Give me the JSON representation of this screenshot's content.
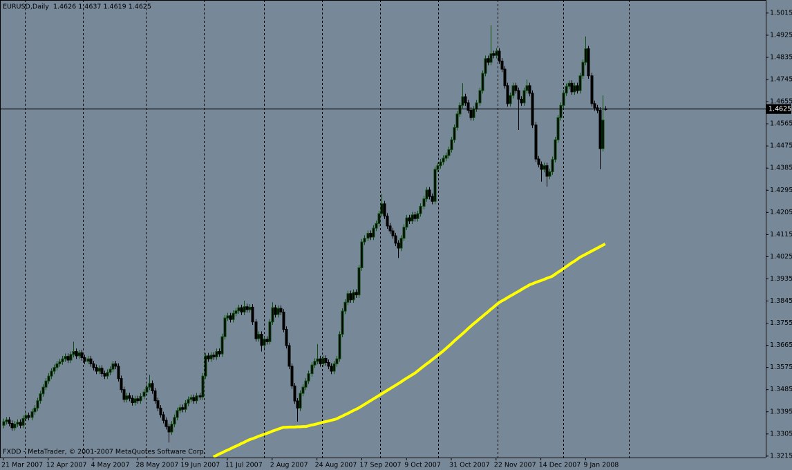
{
  "chart_data": {
    "type": "candlestick",
    "title": "EURUSD,Daily  1.4626 1.4637 1.4619 1.4625",
    "copyright": "FXDD - MetaTrader, © 2001-2007 MetaQuotes Software Corp.",
    "categories": [
      "21 Mar 2007",
      null,
      null,
      null,
      null,
      null,
      null,
      null,
      null,
      null,
      null,
      null,
      null,
      null,
      null,
      null,
      "12 Apr 2007",
      null,
      null,
      null,
      null,
      null,
      null,
      null,
      null,
      null,
      null,
      null,
      null,
      null,
      null,
      null,
      "4 May 2007",
      null,
      null,
      null,
      null,
      null,
      null,
      null,
      null,
      null,
      null,
      null,
      null,
      null,
      null,
      null,
      "28 May 2007",
      null,
      null,
      null,
      null,
      null,
      null,
      null,
      null,
      null,
      null,
      null,
      null,
      null,
      null,
      null,
      "19 Jun 2007",
      null,
      null,
      null,
      null,
      null,
      null,
      null,
      null,
      null,
      null,
      null,
      null,
      null,
      null,
      null,
      "11 Jul 2007",
      null,
      null,
      null,
      null,
      null,
      null,
      null,
      null,
      null,
      null,
      null,
      null,
      null,
      null,
      null,
      "2 Aug 2007",
      null,
      null,
      null,
      null,
      null,
      null,
      null,
      null,
      null,
      null,
      null,
      null,
      null,
      null,
      null,
      "24 Aug 2007",
      null,
      null,
      null,
      null,
      null,
      null,
      null,
      null,
      null,
      null,
      null,
      null,
      null,
      null,
      null,
      "17 Sep 2007",
      null,
      null,
      null,
      null,
      null,
      null,
      null,
      null,
      null,
      null,
      null,
      null,
      null,
      null,
      null,
      "9 Oct 2007",
      null,
      null,
      null,
      null,
      null,
      null,
      null,
      null,
      null,
      null,
      null,
      null,
      null,
      null,
      null,
      "31 Oct 2007",
      null,
      null,
      null,
      null,
      null,
      null,
      null,
      null,
      null,
      null,
      null,
      null,
      null,
      null,
      null,
      "22 Nov 2007",
      null,
      null,
      null,
      null,
      null,
      null,
      null,
      null,
      null,
      null,
      null,
      null,
      null,
      null,
      null,
      "14 Dec 2007",
      null,
      null,
      null,
      null,
      null,
      null,
      null,
      null,
      null,
      null,
      null,
      null,
      null,
      null,
      null,
      "9 Jan 2008",
      null,
      null,
      null,
      null,
      null,
      null,
      null
    ],
    "open": [
      1.334,
      1.3355,
      1.3362,
      1.3348,
      1.333,
      1.3345,
      1.3352,
      1.334,
      1.3368,
      1.338,
      1.3372,
      1.3395,
      1.341,
      1.344,
      1.3468,
      1.3495,
      1.352,
      1.354,
      1.356,
      1.3575,
      1.359,
      1.3598,
      1.361,
      1.362,
      1.3605,
      1.3628,
      1.364,
      1.3622,
      1.3635,
      1.3615,
      1.36,
      1.361,
      1.359,
      1.3575,
      1.356,
      1.3572,
      1.355,
      1.354,
      1.3555,
      1.3568,
      1.359,
      1.358,
      1.353,
      1.3485,
      1.3445,
      1.346,
      1.345,
      1.3432,
      1.3448,
      1.344,
      1.3458,
      1.3475,
      1.3495,
      1.351,
      1.348,
      1.344,
      1.341,
      1.3383,
      1.336,
      1.3335,
      1.3313,
      1.3345,
      1.3372,
      1.34,
      1.3412,
      1.3405,
      1.343,
      1.3445,
      1.3453,
      1.344,
      1.346,
      1.3455,
      1.354,
      1.3622,
      1.361,
      1.3625,
      1.3618,
      1.364,
      1.363,
      1.37,
      1.3776,
      1.3785,
      1.377,
      1.3795,
      1.3805,
      1.3818,
      1.38,
      1.3822,
      1.381,
      1.382,
      1.376,
      1.3692,
      1.371,
      1.3665,
      1.369,
      1.368,
      1.376,
      1.3818,
      1.379,
      1.3815,
      1.38,
      1.373,
      1.3664,
      1.358,
      1.35,
      1.3439,
      1.341,
      1.347,
      1.3495,
      1.352,
      1.355,
      1.3585,
      1.36,
      1.361,
      1.359,
      1.3612,
      1.3595,
      1.358,
      1.356,
      1.359,
      1.361,
      1.371,
      1.3804,
      1.384,
      1.3875,
      1.385,
      1.388,
      1.387,
      1.398,
      1.4085,
      1.41,
      1.412,
      1.4105,
      1.4141,
      1.416,
      1.42,
      1.424,
      1.419,
      1.415,
      1.413,
      1.411,
      1.408,
      1.406,
      1.41,
      1.4145,
      1.4183,
      1.417,
      1.4195,
      1.418,
      1.42,
      1.423,
      1.426,
      1.4296,
      1.427,
      1.425,
      1.438,
      1.4395,
      1.441,
      1.4425,
      1.4436,
      1.446,
      1.45,
      1.455,
      1.4605,
      1.464,
      1.4675,
      1.465,
      1.462,
      1.459,
      1.4625,
      1.465,
      1.47,
      1.477,
      1.483,
      1.4815,
      1.485,
      1.4843,
      1.486,
      1.482,
      1.4787,
      1.472,
      1.4647,
      1.468,
      1.472,
      1.47,
      1.4665,
      1.465,
      1.47,
      1.472,
      1.4689,
      1.456,
      1.4422,
      1.44,
      1.438,
      1.4395,
      1.4352,
      1.437,
      1.442,
      1.45,
      1.459,
      1.464,
      1.469,
      1.4717,
      1.473,
      1.4695,
      1.472,
      1.47,
      1.476,
      1.4815,
      1.487,
      1.476,
      1.4647,
      1.463,
      1.462,
      1.4464,
      1.4626
    ],
    "high": [
      1.3367,
      1.3374,
      1.3374,
      1.336,
      1.3357,
      1.3364,
      1.3364,
      1.338,
      1.3392,
      1.3392,
      1.3407,
      1.3422,
      1.3452,
      1.348,
      1.3507,
      1.3532,
      1.3552,
      1.3572,
      1.3587,
      1.3602,
      1.361,
      1.3622,
      1.3632,
      1.3632,
      1.364,
      1.368,
      1.3652,
      1.3647,
      1.3647,
      1.3627,
      1.3622,
      1.3622,
      1.3602,
      1.3587,
      1.3584,
      1.3584,
      1.3562,
      1.3567,
      1.358,
      1.3602,
      1.3602,
      1.3592,
      1.3542,
      1.3497,
      1.3472,
      1.3472,
      1.3462,
      1.346,
      1.346,
      1.347,
      1.3487,
      1.3507,
      1.3545,
      1.3522,
      1.3492,
      1.3452,
      1.3422,
      1.3395,
      1.3372,
      1.3347,
      1.3357,
      1.3384,
      1.3412,
      1.3424,
      1.3424,
      1.3442,
      1.3457,
      1.3465,
      1.3465,
      1.3472,
      1.3472,
      1.3552,
      1.3634,
      1.3634,
      1.3637,
      1.3637,
      1.3652,
      1.3652,
      1.3712,
      1.3788,
      1.3797,
      1.3797,
      1.3807,
      1.3817,
      1.383,
      1.383,
      1.3846,
      1.3834,
      1.3832,
      1.3832,
      1.3772,
      1.3722,
      1.3722,
      1.3702,
      1.3702,
      1.3772,
      1.384,
      1.383,
      1.3827,
      1.3827,
      1.3812,
      1.3742,
      1.3676,
      1.3592,
      1.3512,
      1.3451,
      1.3482,
      1.3507,
      1.3532,
      1.3562,
      1.3597,
      1.3612,
      1.367,
      1.3622,
      1.3624,
      1.3624,
      1.3607,
      1.3592,
      1.3602,
      1.3622,
      1.3722,
      1.3816,
      1.3852,
      1.3887,
      1.3887,
      1.3892,
      1.3892,
      1.3992,
      1.4097,
      1.4112,
      1.4132,
      1.4132,
      1.4153,
      1.4172,
      1.4212,
      1.428,
      1.4252,
      1.4202,
      1.4162,
      1.4142,
      1.4122,
      1.4092,
      1.4112,
      1.4157,
      1.4195,
      1.4195,
      1.4207,
      1.4207,
      1.4212,
      1.4242,
      1.4272,
      1.4308,
      1.4308,
      1.4282,
      1.4392,
      1.4407,
      1.4422,
      1.4437,
      1.4448,
      1.4472,
      1.4512,
      1.4562,
      1.4617,
      1.4652,
      1.473,
      1.4687,
      1.4662,
      1.4632,
      1.4637,
      1.4662,
      1.4712,
      1.4782,
      1.4842,
      1.4842,
      1.4966,
      1.4862,
      1.4872,
      1.4872,
      1.4832,
      1.4799,
      1.4732,
      1.4692,
      1.4732,
      1.4732,
      1.4712,
      1.4677,
      1.4712,
      1.4745,
      1.4732,
      1.4701,
      1.4572,
      1.4434,
      1.4412,
      1.4407,
      1.4407,
      1.4382,
      1.4432,
      1.4512,
      1.4602,
      1.4652,
      1.4702,
      1.4729,
      1.4742,
      1.4742,
      1.4732,
      1.4732,
      1.4772,
      1.4827,
      1.492,
      1.4882,
      1.4772,
      1.4659,
      1.4642,
      1.4632,
      1.468,
      1.4637
    ],
    "low": [
      1.3328,
      1.3343,
      1.3336,
      1.3318,
      1.3318,
      1.3333,
      1.3328,
      1.3328,
      1.3356,
      1.336,
      1.336,
      1.3383,
      1.3398,
      1.3428,
      1.3456,
      1.3483,
      1.3508,
      1.3528,
      1.3548,
      1.3563,
      1.3578,
      1.3586,
      1.3598,
      1.3593,
      1.3593,
      1.3616,
      1.361,
      1.361,
      1.3603,
      1.3588,
      1.3588,
      1.3578,
      1.3563,
      1.3548,
      1.3548,
      1.3538,
      1.3528,
      1.3528,
      1.3543,
      1.3556,
      1.3568,
      1.3518,
      1.3473,
      1.3433,
      1.3433,
      1.3438,
      1.342,
      1.342,
      1.3428,
      1.3428,
      1.3446,
      1.3463,
      1.3483,
      1.3468,
      1.3428,
      1.3398,
      1.3371,
      1.3348,
      1.3323,
      1.327,
      1.3301,
      1.3333,
      1.336,
      1.3388,
      1.3393,
      1.3393,
      1.3418,
      1.3433,
      1.3428,
      1.3428,
      1.3443,
      1.3443,
      1.3528,
      1.3598,
      1.3598,
      1.3606,
      1.3606,
      1.3618,
      1.3618,
      1.3688,
      1.3764,
      1.3758,
      1.3758,
      1.3783,
      1.3793,
      1.3788,
      1.3788,
      1.3798,
      1.3798,
      1.3748,
      1.368,
      1.368,
      1.364,
      1.3653,
      1.3668,
      1.3668,
      1.3748,
      1.3778,
      1.3778,
      1.3788,
      1.3718,
      1.3652,
      1.3568,
      1.3488,
      1.3427,
      1.3355,
      1.3398,
      1.3458,
      1.3483,
      1.3508,
      1.3538,
      1.3573,
      1.3588,
      1.3578,
      1.3578,
      1.3583,
      1.3568,
      1.3548,
      1.3548,
      1.3578,
      1.3598,
      1.3698,
      1.3792,
      1.3828,
      1.3838,
      1.3838,
      1.3858,
      1.3858,
      1.3968,
      1.4073,
      1.4088,
      1.4093,
      1.4093,
      1.4129,
      1.4148,
      1.4188,
      1.4178,
      1.4138,
      1.4118,
      1.4098,
      1.4068,
      1.402,
      1.4048,
      1.4088,
      1.4133,
      1.4158,
      1.4158,
      1.4168,
      1.4168,
      1.4188,
      1.4218,
      1.4248,
      1.4258,
      1.4238,
      1.4238,
      1.4368,
      1.4383,
      1.4398,
      1.4413,
      1.4424,
      1.4448,
      1.4488,
      1.4538,
      1.4593,
      1.4628,
      1.4638,
      1.4608,
      1.4578,
      1.4578,
      1.4613,
      1.4638,
      1.4688,
      1.4758,
      1.4803,
      1.4803,
      1.4831,
      1.4831,
      1.4808,
      1.4775,
      1.4708,
      1.4635,
      1.4635,
      1.4668,
      1.4688,
      1.454,
      1.4638,
      1.4638,
      1.4688,
      1.4677,
      1.4548,
      1.441,
      1.4388,
      1.433,
      1.4368,
      1.431,
      1.434,
      1.4358,
      1.4408,
      1.4488,
      1.4578,
      1.4628,
      1.4678,
      1.4705,
      1.4683,
      1.4683,
      1.4688,
      1.4688,
      1.4748,
      1.4803,
      1.4748,
      1.4635,
      1.4618,
      1.4608,
      1.438,
      1.4452,
      1.4619
    ],
    "close": [
      1.3355,
      1.3362,
      1.3348,
      1.333,
      1.3345,
      1.3352,
      1.334,
      1.3368,
      1.338,
      1.3372,
      1.3395,
      1.341,
      1.344,
      1.3468,
      1.3495,
      1.352,
      1.354,
      1.356,
      1.3575,
      1.359,
      1.3598,
      1.361,
      1.362,
      1.3605,
      1.3628,
      1.364,
      1.3622,
      1.3635,
      1.3615,
      1.36,
      1.361,
      1.359,
      1.3575,
      1.356,
      1.3572,
      1.355,
      1.354,
      1.3555,
      1.3568,
      1.359,
      1.358,
      1.353,
      1.3485,
      1.3445,
      1.346,
      1.345,
      1.3432,
      1.3448,
      1.344,
      1.3458,
      1.3475,
      1.3495,
      1.351,
      1.348,
      1.344,
      1.341,
      1.3383,
      1.336,
      1.3335,
      1.3313,
      1.3345,
      1.3372,
      1.34,
      1.3412,
      1.3405,
      1.343,
      1.3445,
      1.3453,
      1.344,
      1.346,
      1.3455,
      1.354,
      1.3622,
      1.361,
      1.3625,
      1.3618,
      1.364,
      1.363,
      1.37,
      1.3776,
      1.3785,
      1.377,
      1.3795,
      1.3805,
      1.3818,
      1.38,
      1.3822,
      1.381,
      1.382,
      1.376,
      1.3692,
      1.371,
      1.3665,
      1.369,
      1.368,
      1.376,
      1.3818,
      1.379,
      1.3815,
      1.38,
      1.373,
      1.3664,
      1.358,
      1.35,
      1.3439,
      1.341,
      1.347,
      1.3495,
      1.352,
      1.355,
      1.3585,
      1.36,
      1.361,
      1.359,
      1.3612,
      1.3595,
      1.358,
      1.356,
      1.359,
      1.361,
      1.371,
      1.3804,
      1.384,
      1.3875,
      1.385,
      1.388,
      1.387,
      1.398,
      1.4085,
      1.41,
      1.412,
      1.4105,
      1.4141,
      1.416,
      1.42,
      1.424,
      1.419,
      1.415,
      1.413,
      1.411,
      1.408,
      1.406,
      1.41,
      1.4145,
      1.4183,
      1.417,
      1.4195,
      1.418,
      1.42,
      1.423,
      1.426,
      1.4296,
      1.427,
      1.425,
      1.438,
      1.4395,
      1.441,
      1.4425,
      1.4436,
      1.446,
      1.45,
      1.455,
      1.4605,
      1.464,
      1.4675,
      1.465,
      1.462,
      1.459,
      1.4625,
      1.465,
      1.47,
      1.477,
      1.483,
      1.4815,
      1.485,
      1.4843,
      1.486,
      1.482,
      1.4787,
      1.472,
      1.4647,
      1.468,
      1.472,
      1.47,
      1.4665,
      1.465,
      1.47,
      1.472,
      1.4689,
      1.456,
      1.4422,
      1.44,
      1.438,
      1.4395,
      1.4352,
      1.437,
      1.442,
      1.45,
      1.459,
      1.464,
      1.469,
      1.4717,
      1.473,
      1.4695,
      1.472,
      1.47,
      1.476,
      1.4815,
      1.487,
      1.476,
      1.4647,
      1.463,
      1.462,
      1.4464,
      1.458,
      1.4625
    ],
    "up_color": "#0c4d0c",
    "down_color": "#000000",
    "overlay": {
      "color": "#ffff00",
      "values": [
        null,
        null,
        null,
        null,
        null,
        null,
        null,
        null,
        null,
        null,
        null,
        null,
        null,
        null,
        null,
        null,
        null,
        null,
        null,
        null,
        null,
        null,
        null,
        null,
        null,
        null,
        null,
        null,
        null,
        null,
        null,
        null,
        null,
        null,
        null,
        null,
        null,
        null,
        null,
        null,
        null,
        null,
        null,
        null,
        null,
        null,
        null,
        null,
        null,
        null,
        null,
        null,
        null,
        null,
        null,
        null,
        null,
        null,
        null,
        null,
        null,
        null,
        null,
        null,
        null,
        null,
        null,
        null,
        null,
        null,
        null,
        null,
        null,
        null,
        null,
        1.3212,
        1.3217,
        1.3223,
        1.3228,
        1.3234,
        1.3239,
        1.3244,
        1.325,
        1.3255,
        1.326,
        1.3266,
        1.3271,
        1.3277,
        1.3282,
        1.3286,
        1.329,
        1.3295,
        1.3299,
        1.3303,
        1.3307,
        1.3311,
        1.3316,
        1.332,
        1.3324,
        1.3328,
        1.3332,
        1.3332,
        1.3333,
        1.3333,
        1.3333,
        1.3334,
        1.3334,
        1.3335,
        1.3335,
        1.3338,
        1.3341,
        1.3343,
        1.3346,
        1.3349,
        1.3352,
        1.3355,
        1.3357,
        1.336,
        1.3363,
        1.3366,
        1.3372,
        1.3377,
        1.3383,
        1.3388,
        1.3394,
        1.34,
        1.3405,
        1.3411,
        1.3418,
        1.3425,
        1.3432,
        1.3439,
        1.3446,
        1.3453,
        1.346,
        1.3467,
        1.3474,
        1.3481,
        1.3488,
        1.3495,
        1.3502,
        1.3509,
        1.3516,
        1.3524,
        1.3531,
        1.3538,
        1.3545,
        1.3552,
        1.3561,
        1.357,
        1.3579,
        1.3588,
        1.3596,
        1.3605,
        1.3614,
        1.3623,
        1.3632,
        1.3641,
        1.3651,
        1.3661,
        1.3671,
        1.3682,
        1.3692,
        1.3702,
        1.3712,
        1.3722,
        1.3733,
        1.3743,
        1.3753,
        1.3762,
        1.3772,
        1.3781,
        1.3791,
        1.38,
        1.381,
        1.3819,
        1.3829,
        1.3838,
        1.3845,
        1.3851,
        1.3858,
        1.3865,
        1.3871,
        1.3878,
        1.3884,
        1.3891,
        1.3898,
        1.3904,
        1.3911,
        1.3915,
        1.392,
        1.3924,
        1.3928,
        1.3932,
        1.3937,
        1.3941,
        1.3945,
        1.3953,
        1.3961,
        1.3968,
        1.3976,
        1.3984,
        1.3992,
        1.4,
        1.4007,
        1.4015,
        1.4023,
        1.4029,
        1.4035,
        1.4041,
        1.4047,
        1.4053,
        1.4059,
        1.4065,
        1.4071,
        1.4077
      ]
    },
    "current_price": 1.4625,
    "ylim": [
      1.3209,
      1.5068
    ],
    "yticks": [
      1.3215,
      1.3305,
      1.3395,
      1.3485,
      1.3575,
      1.3665,
      1.3755,
      1.3845,
      1.3935,
      1.4025,
      1.4115,
      1.4205,
      1.4295,
      1.4385,
      1.4475,
      1.4565,
      1.4655,
      1.4745,
      1.4835,
      1.4925,
      1.5015
    ]
  }
}
